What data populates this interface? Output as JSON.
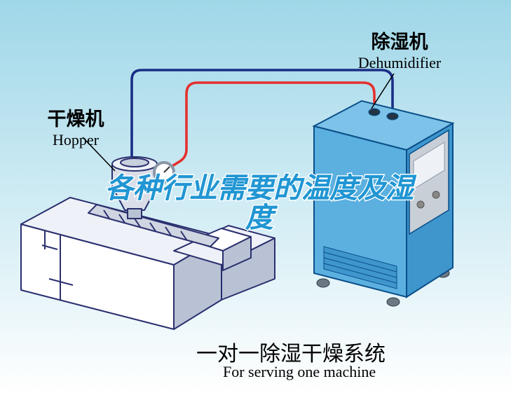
{
  "background": {
    "gradient_top": "#9fd7e8",
    "gradient_bottom": "#ffffff"
  },
  "labels": {
    "hopper_cn": "干燥机",
    "hopper_en": "Hopper",
    "dehumidifier_cn": "除湿机",
    "dehumidifier_en": "Dehumidifier"
  },
  "title": {
    "cn": "一对一除湿干燥系统",
    "en": "For serving one machine"
  },
  "overlay": {
    "line1": "各种行业需要的温度及湿",
    "line2": "度",
    "color": "#2196d3",
    "stroke": "#ffffff",
    "fontsize": 40
  },
  "label_style": {
    "cn_fontsize": 27,
    "en_fontsize": 22,
    "title_cn_fontsize": 30,
    "title_en_fontsize": 22
  },
  "diagram": {
    "type": "infographic",
    "pipes": {
      "red": {
        "color": "#e4312e",
        "width": 3.6
      },
      "blue": {
        "color": "#1a2e87",
        "width": 3.6
      }
    },
    "dehumidifier": {
      "body_fill": "#5bb0e0",
      "body_stroke": "#0b4f8a",
      "panel_fill": "#c9cfd6",
      "caster_fill": "#6b7884"
    },
    "extruder": {
      "body_fill": "#ffffff",
      "body_stroke": "#2a2f6e",
      "shade_fill": "#b9c2d4",
      "hopper_fill": "#d9dee8",
      "screw_fill": "#cfd5e1",
      "gauge_ring": "#8a96a8"
    },
    "leader_color": "#000000"
  }
}
